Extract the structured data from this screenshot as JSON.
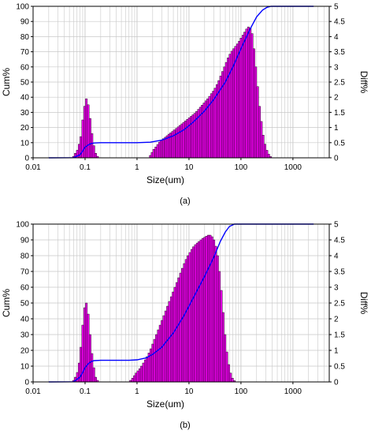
{
  "colors": {
    "bars": "#e000e0",
    "bar_edge": "#000000",
    "curve": "#0000ff",
    "grid": "#c8c8c8",
    "axis": "#000000"
  },
  "chart_data": [
    {
      "panel_label": "(a)",
      "type": "bar",
      "xlabel": "Size(um)",
      "ylabel": "Cum%",
      "y2label": "Diff%",
      "x_scale": "log",
      "xlim": [
        0.01,
        5000
      ],
      "ylim": [
        0,
        100
      ],
      "y2lim": [
        0,
        5
      ],
      "xtick_labels": [
        "0.01",
        "0.1",
        "1",
        "10",
        "100",
        "1000"
      ],
      "ytick_labels": [
        "0",
        "10",
        "20",
        "30",
        "40",
        "50",
        "60",
        "70",
        "80",
        "90",
        "100"
      ],
      "y2tick_labels": [
        "0",
        "0.5",
        "1",
        "1.5",
        "2",
        "2.5",
        "3",
        "3.5",
        "4",
        "4.5",
        "5"
      ],
      "grid": true,
      "histogram": {
        "name": "Diff%",
        "axis": "y2",
        "log_bin_width": 0.0375,
        "bins": [
          [
            0.06,
            0.05
          ],
          [
            0.065,
            0.15
          ],
          [
            0.071,
            0.25
          ],
          [
            0.077,
            0.45
          ],
          [
            0.083,
            0.7
          ],
          [
            0.09,
            1.25
          ],
          [
            0.098,
            1.7
          ],
          [
            0.106,
            1.95
          ],
          [
            0.115,
            1.75
          ],
          [
            0.125,
            1.3
          ],
          [
            0.136,
            0.8
          ],
          [
            0.148,
            0.4
          ],
          [
            0.16,
            0.15
          ],
          [
            0.174,
            0.05
          ],
          [
            1.8,
            0.08
          ],
          [
            1.95,
            0.18
          ],
          [
            2.1,
            0.28
          ],
          [
            2.3,
            0.36
          ],
          [
            2.5,
            0.44
          ],
          [
            2.7,
            0.52
          ],
          [
            2.9,
            0.58
          ],
          [
            3.2,
            0.63
          ],
          [
            3.5,
            0.68
          ],
          [
            3.8,
            0.73
          ],
          [
            4.1,
            0.78
          ],
          [
            4.4,
            0.82
          ],
          [
            4.8,
            0.87
          ],
          [
            5.2,
            0.92
          ],
          [
            5.7,
            0.97
          ],
          [
            6.2,
            1.02
          ],
          [
            6.7,
            1.07
          ],
          [
            7.3,
            1.12
          ],
          [
            7.9,
            1.17
          ],
          [
            8.6,
            1.22
          ],
          [
            9.3,
            1.27
          ],
          [
            10.1,
            1.32
          ],
          [
            11,
            1.37
          ],
          [
            11.9,
            1.42
          ],
          [
            12.9,
            1.47
          ],
          [
            14,
            1.53
          ],
          [
            15.2,
            1.6
          ],
          [
            16.5,
            1.67
          ],
          [
            17.9,
            1.74
          ],
          [
            19.5,
            1.81
          ],
          [
            21.1,
            1.88
          ],
          [
            22.9,
            1.95
          ],
          [
            24.9,
            2.03
          ],
          [
            27,
            2.12
          ],
          [
            29.3,
            2.2
          ],
          [
            31.8,
            2.3
          ],
          [
            34.6,
            2.42
          ],
          [
            37.5,
            2.55
          ],
          [
            40.7,
            2.7
          ],
          [
            44.2,
            2.85
          ],
          [
            48,
            3.0
          ],
          [
            52.1,
            3.15
          ],
          [
            56.6,
            3.3
          ],
          [
            61.4,
            3.42
          ],
          [
            66.7,
            3.52
          ],
          [
            72.4,
            3.6
          ],
          [
            78.6,
            3.68
          ],
          [
            85.3,
            3.76
          ],
          [
            92.6,
            3.85
          ],
          [
            100,
            3.95
          ],
          [
            109,
            4.05
          ],
          [
            118,
            4.15
          ],
          [
            128,
            4.25
          ],
          [
            139,
            4.32
          ],
          [
            151,
            4.28
          ],
          [
            164,
            4.1
          ],
          [
            178,
            3.6
          ],
          [
            193,
            3.0
          ],
          [
            210,
            2.35
          ],
          [
            228,
            1.7
          ],
          [
            247,
            1.2
          ],
          [
            268,
            0.75
          ],
          [
            291,
            0.45
          ],
          [
            316,
            0.25
          ],
          [
            343,
            0.12
          ],
          [
            372,
            0.04
          ]
        ]
      },
      "curve": {
        "name": "Cum%",
        "axis": "y",
        "points": [
          [
            0.02,
            0
          ],
          [
            0.06,
            0.1
          ],
          [
            0.08,
            2
          ],
          [
            0.09,
            4.5
          ],
          [
            0.1,
            7
          ],
          [
            0.115,
            8.5
          ],
          [
            0.13,
            9.4
          ],
          [
            0.15,
            9.8
          ],
          [
            0.2,
            10
          ],
          [
            1,
            10
          ],
          [
            1.8,
            10.3
          ],
          [
            3,
            11.7
          ],
          [
            5,
            14.5
          ],
          [
            8,
            18.5
          ],
          [
            12,
            23.5
          ],
          [
            20,
            31
          ],
          [
            30,
            38.5
          ],
          [
            50,
            50
          ],
          [
            70,
            60
          ],
          [
            100,
            72
          ],
          [
            150,
            85
          ],
          [
            200,
            93
          ],
          [
            260,
            97.5
          ],
          [
            320,
            99.4
          ],
          [
            380,
            100
          ],
          [
            2500,
            100
          ]
        ]
      }
    },
    {
      "panel_label": "(b)",
      "type": "bar",
      "xlabel": "Size(um)",
      "ylabel": "Cum%",
      "y2label": "Diff%",
      "x_scale": "log",
      "xlim": [
        0.01,
        5000
      ],
      "ylim": [
        0,
        100
      ],
      "y2lim": [
        0,
        5
      ],
      "xtick_labels": [
        "0.01",
        "0.1",
        "1",
        "10",
        "100",
        "1000"
      ],
      "ytick_labels": [
        "0",
        "10",
        "20",
        "30",
        "40",
        "50",
        "60",
        "70",
        "80",
        "90",
        "100"
      ],
      "y2tick_labels": [
        "0",
        "0.5",
        "1",
        "1.5",
        "2",
        "2.5",
        "3",
        "3.5",
        "4",
        "4.5",
        "5"
      ],
      "grid": true,
      "histogram": {
        "name": "Diff%",
        "axis": "y2",
        "log_bin_width": 0.0375,
        "bins": [
          [
            0.06,
            0.05
          ],
          [
            0.065,
            0.15
          ],
          [
            0.071,
            0.3
          ],
          [
            0.077,
            0.6
          ],
          [
            0.083,
            1.1
          ],
          [
            0.09,
            1.8
          ],
          [
            0.098,
            2.35
          ],
          [
            0.106,
            2.5
          ],
          [
            0.115,
            2.15
          ],
          [
            0.125,
            1.5
          ],
          [
            0.136,
            0.9
          ],
          [
            0.148,
            0.45
          ],
          [
            0.16,
            0.15
          ],
          [
            0.174,
            0.05
          ],
          [
            0.75,
            0.05
          ],
          [
            0.82,
            0.12
          ],
          [
            0.89,
            0.2
          ],
          [
            0.96,
            0.28
          ],
          [
            1.04,
            0.35
          ],
          [
            1.13,
            0.42
          ],
          [
            1.22,
            0.5
          ],
          [
            1.33,
            0.6
          ],
          [
            1.44,
            0.7
          ],
          [
            1.56,
            0.8
          ],
          [
            1.7,
            0.92
          ],
          [
            1.84,
            1.05
          ],
          [
            2.0,
            1.2
          ],
          [
            2.17,
            1.35
          ],
          [
            2.36,
            1.5
          ],
          [
            2.56,
            1.65
          ],
          [
            2.78,
            1.8
          ],
          [
            3.02,
            1.95
          ],
          [
            3.28,
            2.1
          ],
          [
            3.56,
            2.25
          ],
          [
            3.86,
            2.4
          ],
          [
            4.19,
            2.55
          ],
          [
            4.55,
            2.7
          ],
          [
            4.94,
            2.85
          ],
          [
            5.37,
            3.0
          ],
          [
            5.83,
            3.15
          ],
          [
            6.33,
            3.3
          ],
          [
            6.87,
            3.45
          ],
          [
            7.46,
            3.6
          ],
          [
            8.1,
            3.75
          ],
          [
            8.79,
            3.88
          ],
          [
            9.55,
            4.0
          ],
          [
            10.4,
            4.1
          ],
          [
            11.3,
            4.2
          ],
          [
            12.2,
            4.28
          ],
          [
            13.3,
            4.35
          ],
          [
            14.4,
            4.4
          ],
          [
            15.6,
            4.45
          ],
          [
            17,
            4.5
          ],
          [
            18.4,
            4.55
          ],
          [
            20,
            4.58
          ],
          [
            21.7,
            4.62
          ],
          [
            23.6,
            4.65
          ],
          [
            25.6,
            4.65
          ],
          [
            27.8,
            4.6
          ],
          [
            30.2,
            4.5
          ],
          [
            32.8,
            4.3
          ],
          [
            35.6,
            4.0
          ],
          [
            38.6,
            3.5
          ],
          [
            41.9,
            2.9
          ],
          [
            45.5,
            2.2
          ],
          [
            49.4,
            1.5
          ],
          [
            53.7,
            0.95
          ],
          [
            58.3,
            0.55
          ],
          [
            63.3,
            0.28
          ],
          [
            68.7,
            0.12
          ],
          [
            74.6,
            0.04
          ]
        ]
      },
      "curve": {
        "name": "Cum%",
        "axis": "y",
        "points": [
          [
            0.02,
            0
          ],
          [
            0.06,
            0.1
          ],
          [
            0.08,
            3
          ],
          [
            0.09,
            6
          ],
          [
            0.1,
            9
          ],
          [
            0.115,
            11.5
          ],
          [
            0.13,
            12.8
          ],
          [
            0.15,
            13.5
          ],
          [
            0.2,
            13.7
          ],
          [
            0.7,
            13.7
          ],
          [
            1,
            14
          ],
          [
            1.5,
            15.2
          ],
          [
            2,
            17.5
          ],
          [
            3,
            22
          ],
          [
            5,
            31
          ],
          [
            8,
            42
          ],
          [
            12,
            53
          ],
          [
            20,
            67
          ],
          [
            30,
            79
          ],
          [
            40,
            89
          ],
          [
            50,
            95
          ],
          [
            60,
            98.5
          ],
          [
            75,
            100
          ],
          [
            2500,
            100
          ]
        ]
      }
    }
  ]
}
